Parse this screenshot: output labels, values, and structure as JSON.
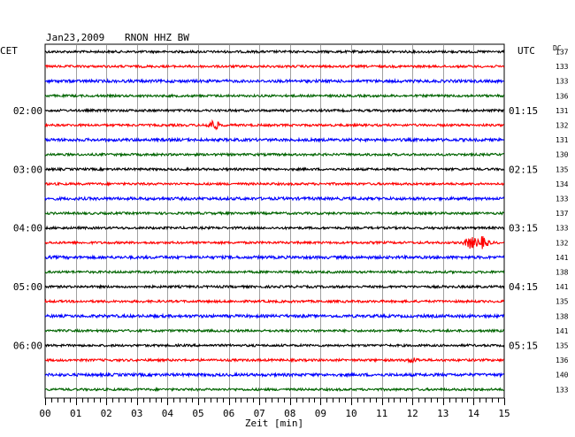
{
  "header": {
    "date": "Jan23,2009",
    "station": "RNON HHZ BW",
    "left_zone": "CET",
    "right_zone": "UTC",
    "dc_label": "DC"
  },
  "chart_data": {
    "type": "line",
    "title": "Jan23,2009    RNON HHZ BW",
    "xlabel": "Zeit [min]",
    "xlim": [
      0,
      15
    ],
    "x_ticks": [
      "00",
      "01",
      "02",
      "03",
      "04",
      "05",
      "06",
      "07",
      "08",
      "09",
      "10",
      "11",
      "12",
      "13",
      "14",
      "15"
    ],
    "grid": true,
    "trace_colors": [
      "#000000",
      "#ff0000",
      "#0000ff",
      "#006400"
    ],
    "left_hour_labels": [
      {
        "trace_index": 4,
        "text": "02:00"
      },
      {
        "trace_index": 8,
        "text": "03:00"
      },
      {
        "trace_index": 12,
        "text": "04:00"
      },
      {
        "trace_index": 16,
        "text": "05:00"
      },
      {
        "trace_index": 20,
        "text": "06:00"
      }
    ],
    "right_hour_labels": [
      {
        "trace_index": 4,
        "text": "01:15"
      },
      {
        "trace_index": 8,
        "text": "02:15"
      },
      {
        "trace_index": 12,
        "text": "03:15"
      },
      {
        "trace_index": 16,
        "text": "04:15"
      },
      {
        "trace_index": 20,
        "text": "05:15"
      }
    ],
    "dc_values": [
      "137",
      "133",
      "133",
      "136",
      "131",
      "132",
      "131",
      "130",
      "135",
      "134",
      "133",
      "137",
      "133",
      "132",
      "141",
      "138",
      "141",
      "135",
      "138",
      "141",
      "135",
      "136",
      "140",
      "133"
    ],
    "events": [
      {
        "trace_index": 5,
        "minute": 5.5,
        "amplitude": 5
      },
      {
        "trace_index": 13,
        "minute": 13.9,
        "amplitude": 6
      },
      {
        "trace_index": 13,
        "minute": 14.3,
        "amplitude": 6
      },
      {
        "trace_index": 21,
        "minute": 12.0,
        "amplitude": 2
      }
    ]
  }
}
